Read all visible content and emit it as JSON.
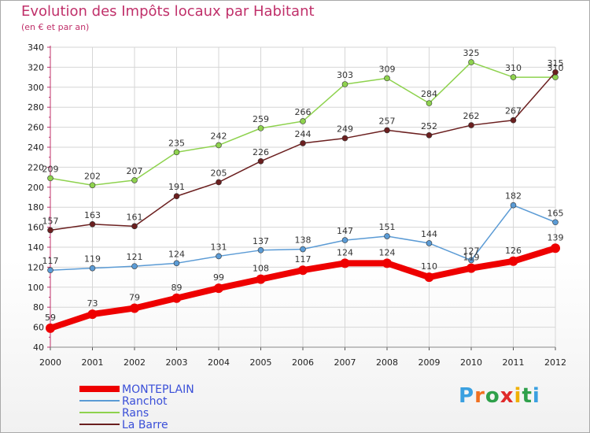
{
  "title": "Evolution des Impôts locaux par Habitant",
  "subtitle": "(en € et par an)",
  "logo": {
    "letters": [
      "P",
      "r",
      "o",
      "x",
      "i",
      "t",
      "i"
    ],
    "colors": [
      "#3aa0e0",
      "#f07020",
      "#2ea04a",
      "#e02a2a",
      "#f0b000",
      "#2ea04a",
      "#3aa0e0"
    ]
  },
  "chart_data": {
    "type": "line",
    "x": [
      "2000",
      "2001",
      "2002",
      "2003",
      "2004",
      "2005",
      "2006",
      "2007",
      "2008",
      "2009",
      "2010",
      "2011",
      "2012"
    ],
    "ylim": [
      40,
      340
    ],
    "yticks": [
      "40",
      "60",
      "80",
      "100",
      "120",
      "140",
      "160",
      "180",
      "200",
      "220",
      "240",
      "260",
      "280",
      "300",
      "320",
      "340"
    ],
    "series": [
      {
        "name": "MONTEPLAIN",
        "color": "#ee0000",
        "bold": true,
        "values": [
          59,
          73,
          79,
          89,
          99,
          108,
          117,
          124,
          124,
          110,
          119,
          126,
          139
        ],
        "labels": [
          "59",
          "73",
          "79",
          "89",
          "99",
          "108",
          "117",
          "124",
          "124",
          "110",
          "119",
          "126",
          "139"
        ]
      },
      {
        "name": "Ranchot",
        "color": "#5b9bd5",
        "bold": false,
        "values": [
          117,
          119,
          121,
          124,
          131,
          137,
          138,
          147,
          151,
          144,
          127,
          182,
          165
        ],
        "labels": [
          "117",
          "119",
          "121",
          "124",
          "131",
          "137",
          "138",
          "147",
          "151",
          "144",
          "127",
          "182",
          "165"
        ]
      },
      {
        "name": "Rans",
        "color": "#8ed24e",
        "bold": false,
        "values": [
          209,
          202,
          207,
          235,
          242,
          259,
          266,
          303,
          309,
          284,
          325,
          310,
          310
        ],
        "labels": [
          "209",
          "202",
          "207",
          "235",
          "242",
          "259",
          "266",
          "303",
          "309",
          "284",
          "325",
          "310",
          "310"
        ]
      },
      {
        "name": "La Barre",
        "color": "#6b1f1f",
        "bold": false,
        "values": [
          157,
          163,
          161,
          191,
          205,
          226,
          244,
          249,
          257,
          252,
          262,
          267,
          315
        ],
        "labels": [
          "157",
          "163",
          "161",
          "191",
          "205",
          "226",
          "244",
          "249",
          "257",
          "252",
          "262",
          "267",
          "315"
        ]
      }
    ]
  }
}
